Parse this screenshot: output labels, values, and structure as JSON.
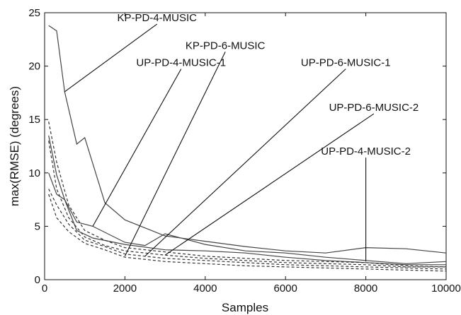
{
  "chart_data": {
    "type": "line",
    "xlabel": "Samples",
    "ylabel": "max(RMSE) (degrees)",
    "xlim": [
      0,
      10000
    ],
    "ylim": [
      0,
      25
    ],
    "xticks": [
      0,
      2000,
      4000,
      6000,
      8000,
      10000
    ],
    "yticks": [
      0,
      5,
      10,
      15,
      20,
      25
    ],
    "xtick_labels": [
      "0",
      "2000",
      "4000",
      "6000",
      "8000",
      "10000"
    ],
    "ytick_labels": [
      "0",
      "5",
      "10",
      "15",
      "20",
      "25"
    ],
    "grid": false,
    "series": [
      {
        "style": "solid",
        "x": [
          100,
          300,
          500,
          800,
          1000,
          1500,
          2000,
          3000,
          4000,
          5000,
          6000,
          7000,
          8000,
          9000,
          10000
        ],
        "y": [
          23.8,
          23.3,
          17.6,
          12.7,
          13.3,
          7.2,
          5.6,
          4.1,
          3.6,
          3.1,
          2.7,
          2.5,
          3.0,
          2.9,
          2.5
        ]
      },
      {
        "style": "solid",
        "x": [
          100,
          300,
          500,
          800,
          1200,
          2000,
          2500,
          3000,
          4000,
          5000,
          6000,
          7000,
          8000,
          9000,
          10000
        ],
        "y": [
          13.5,
          9.8,
          7.5,
          5.4,
          5.0,
          3.5,
          3.2,
          4.3,
          3.3,
          2.7,
          2.5,
          2.1,
          1.8,
          1.5,
          1.7
        ]
      },
      {
        "style": "solid",
        "x": [
          100,
          300,
          500,
          800,
          1200,
          2000,
          3000,
          4000,
          5000,
          6000,
          7000,
          8000,
          9000,
          10000
        ],
        "y": [
          10.0,
          8.0,
          7.5,
          4.6,
          3.9,
          3.3,
          2.8,
          2.7,
          2.5,
          2.1,
          1.8,
          1.6,
          1.4,
          1.4
        ]
      },
      {
        "style": "dashed",
        "x": [
          100,
          300,
          600,
          1000,
          1500,
          2000,
          3000,
          4000,
          5000,
          6000,
          7000,
          8000,
          9000,
          10000
        ],
        "y": [
          14.8,
          11.0,
          7.0,
          4.6,
          3.7,
          3.0,
          2.6,
          2.2,
          2.0,
          1.8,
          1.7,
          1.6,
          1.3,
          1.2
        ]
      },
      {
        "style": "dashed",
        "x": [
          100,
          300,
          600,
          1000,
          1500,
          2000,
          3000,
          4000,
          5000,
          6000,
          7000,
          8000,
          9000,
          10000
        ],
        "y": [
          13.0,
          8.5,
          5.8,
          4.0,
          3.2,
          2.7,
          2.3,
          2.0,
          1.8,
          1.6,
          1.5,
          1.4,
          1.2,
          1.2
        ]
      },
      {
        "style": "dashed",
        "x": [
          100,
          300,
          600,
          1000,
          1500,
          2000,
          3000,
          4000,
          5000,
          6000,
          7000,
          8000,
          9000,
          10000
        ],
        "y": [
          8.5,
          7.0,
          5.2,
          3.7,
          3.1,
          2.4,
          2.0,
          1.8,
          1.6,
          1.4,
          1.3,
          1.2,
          1.1,
          1.0
        ]
      },
      {
        "style": "dashed",
        "x": [
          100,
          300,
          600,
          1000,
          1500,
          2000,
          3000,
          4000,
          5000,
          6000,
          7000,
          8000,
          9000,
          10000
        ],
        "y": [
          8.0,
          5.8,
          4.5,
          3.4,
          2.8,
          2.1,
          1.7,
          1.5,
          1.3,
          1.2,
          1.1,
          1.0,
          0.9,
          0.8
        ]
      }
    ],
    "annotations": [
      {
        "text": "KP-PD-4-MUSIC",
        "point": [
          500,
          17.6
        ],
        "label": [
          2800,
          24.2
        ]
      },
      {
        "text": "UP-PD-4-MUSIC-1",
        "point": [
          1200,
          5.0
        ],
        "label": [
          3400,
          20.0
        ]
      },
      {
        "text": "KP-PD-6-MUSIC",
        "point": [
          2000,
          2.2
        ],
        "label": [
          4500,
          21.6
        ]
      },
      {
        "text": "UP-PD-6-MUSIC-1",
        "point": [
          2500,
          2.2
        ],
        "label": [
          7500,
          20.0
        ]
      },
      {
        "text": "UP-PD-6-MUSIC-2",
        "point": [
          3000,
          2.3
        ],
        "label": [
          8200,
          15.8
        ]
      },
      {
        "text": "UP-PD-4-MUSIC-2",
        "point": [
          8000,
          1.7
        ],
        "label": [
          8000,
          11.7
        ]
      }
    ]
  }
}
